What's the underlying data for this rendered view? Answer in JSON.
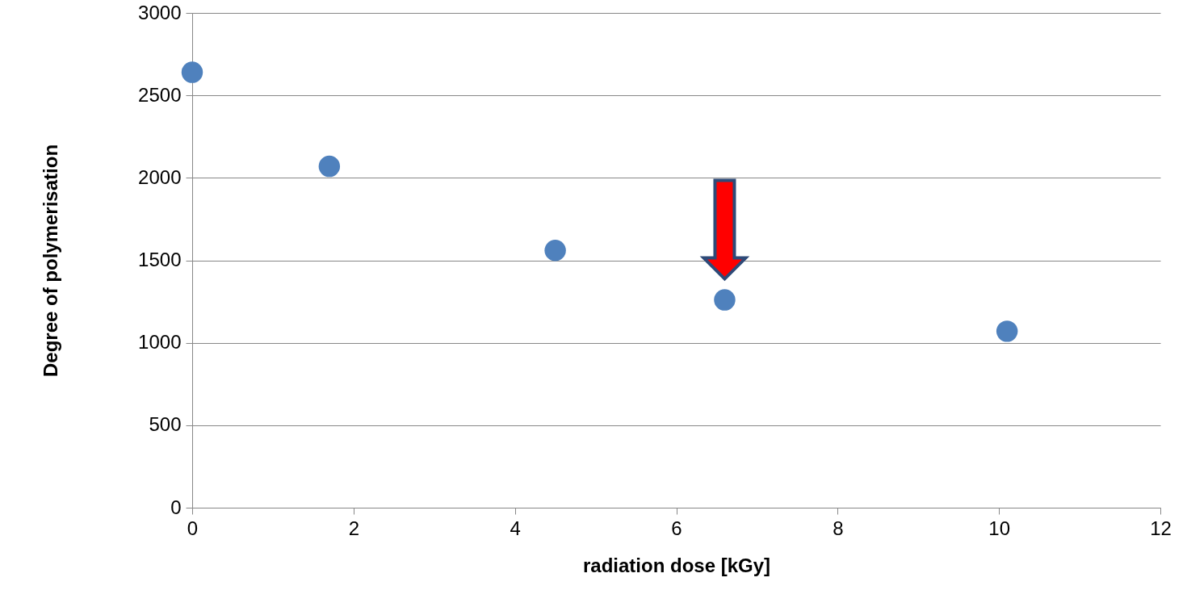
{
  "chart_data": {
    "type": "scatter",
    "xlabel": "radiation dose [kGy]",
    "ylabel": "Degree of polymerisation",
    "x": [
      0,
      1.7,
      4.5,
      6.6,
      10.1
    ],
    "series": [
      {
        "color": "#4f81bd",
        "values": [
          2640,
          2070,
          1560,
          1260,
          1070
        ]
      }
    ],
    "xlim": [
      0,
      12
    ],
    "xticks": [
      0,
      2,
      4,
      6,
      8,
      10,
      12
    ],
    "ylim": [
      0,
      3000
    ],
    "yticks": [
      0,
      500,
      1000,
      1500,
      2000,
      2500,
      3000
    ],
    "grid": "y",
    "marker": "circle"
  }
}
